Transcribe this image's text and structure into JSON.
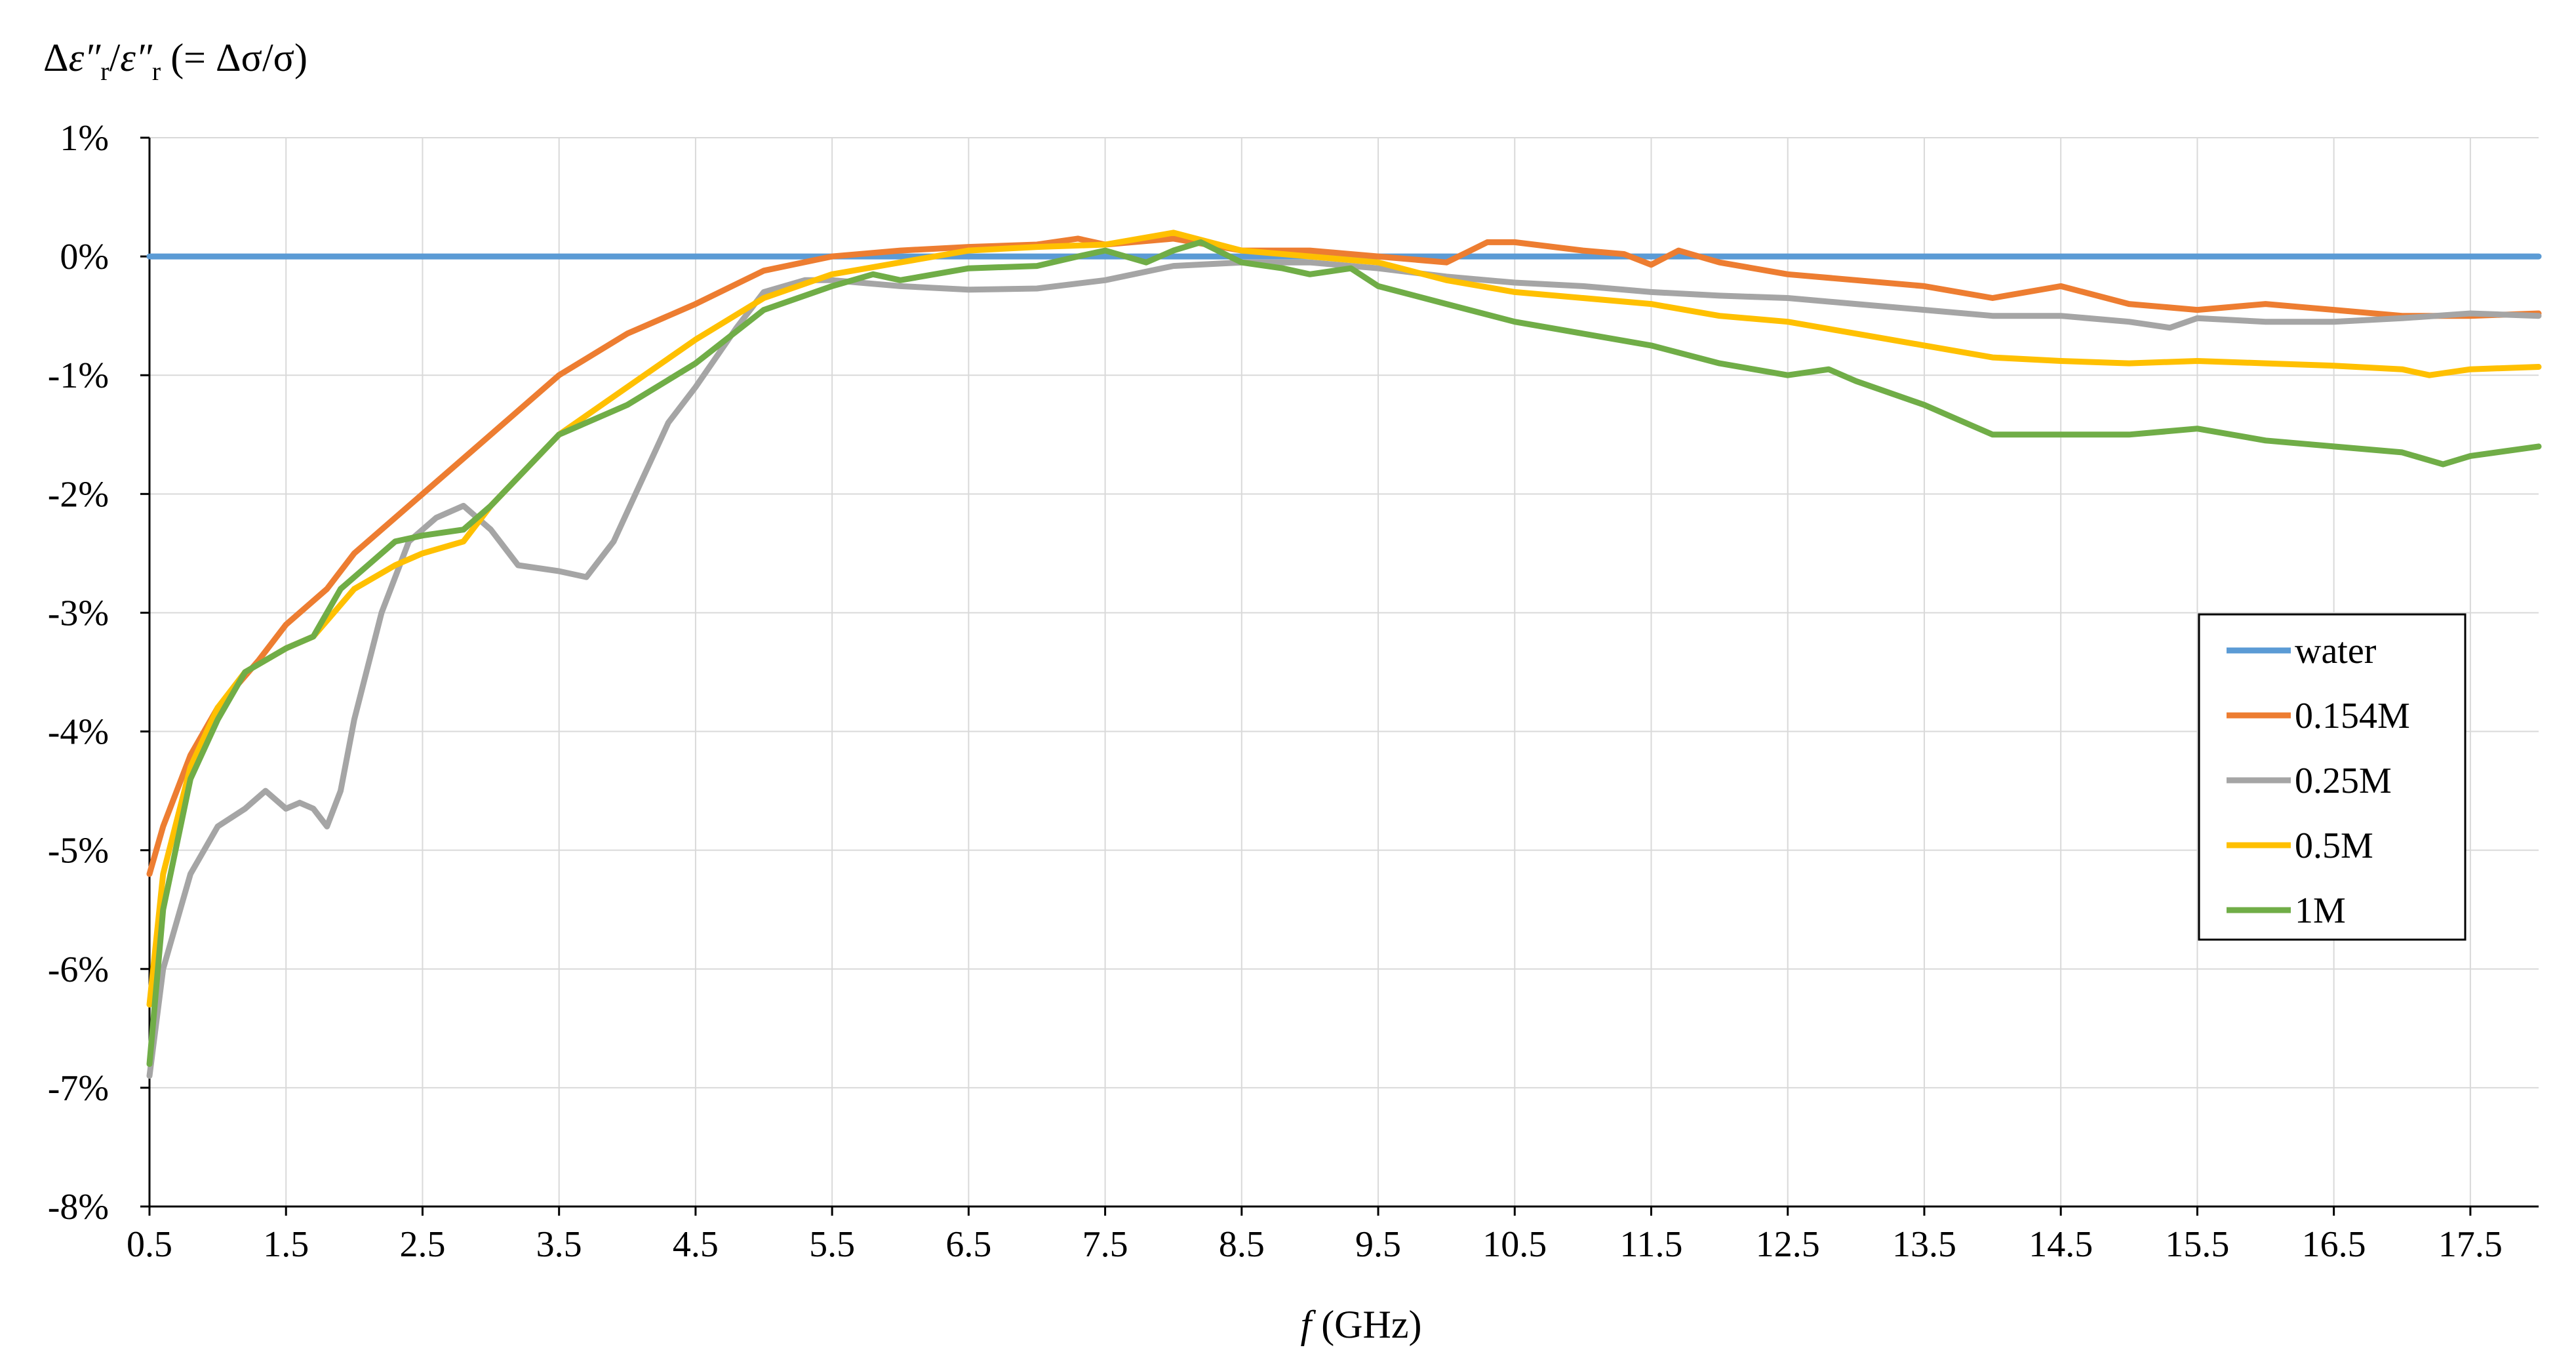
{
  "chart_data": {
    "type": "line",
    "ylabel_parts": {
      "delta": "Δ",
      "eps": "ε″",
      "sub": "r",
      "slash": "/",
      "eps2": "ε″",
      "sub2": "r",
      "rest": " (= Δσ/σ)"
    },
    "xlabel_parts": {
      "f": "f",
      "unit": " (GHz)"
    },
    "xlim": [
      0.5,
      18
    ],
    "ylim": [
      -8,
      1
    ],
    "x_ticks": [
      "0.5",
      "1.5",
      "2.5",
      "3.5",
      "4.5",
      "5.5",
      "6.5",
      "7.5",
      "8.5",
      "9.5",
      "10.5",
      "11.5",
      "12.5",
      "13.5",
      "14.5",
      "15.5",
      "16.5",
      "17.5"
    ],
    "x_tick_values": [
      0.5,
      1.5,
      2.5,
      3.5,
      4.5,
      5.5,
      6.5,
      7.5,
      8.5,
      9.5,
      10.5,
      11.5,
      12.5,
      13.5,
      14.5,
      15.5,
      16.5,
      17.5
    ],
    "y_ticks": [
      "1%",
      "0%",
      "-1%",
      "-2%",
      "-3%",
      "-4%",
      "-5%",
      "-6%",
      "-7%",
      "-8%"
    ],
    "y_tick_values": [
      1,
      0,
      -1,
      -2,
      -3,
      -4,
      -5,
      -6,
      -7,
      -8
    ],
    "grid": true,
    "legend_position": "right",
    "series": [
      {
        "name": "water",
        "color": "#5b9bd5",
        "x": [
          0.5,
          18
        ],
        "y": [
          0,
          0
        ]
      },
      {
        "name": "0.154M",
        "color": "#ed7d31",
        "x": [
          0.5,
          0.6,
          0.8,
          1.0,
          1.3,
          1.5,
          1.8,
          2.0,
          2.5,
          3.0,
          3.5,
          4.0,
          4.5,
          5.0,
          5.5,
          6.0,
          6.5,
          7.0,
          7.3,
          7.5,
          8.0,
          8.5,
          9.0,
          9.5,
          10.0,
          10.3,
          10.5,
          11.0,
          11.3,
          11.5,
          11.7,
          12.0,
          12.5,
          13.0,
          13.5,
          14.0,
          14.5,
          15.0,
          15.5,
          16.0,
          16.5,
          17.0,
          17.5,
          18.0
        ],
        "y": [
          -5.2,
          -4.8,
          -4.2,
          -3.8,
          -3.4,
          -3.1,
          -2.8,
          -2.5,
          -2.0,
          -1.5,
          -1.0,
          -0.65,
          -0.4,
          -0.12,
          0.0,
          0.05,
          0.08,
          0.1,
          0.15,
          0.1,
          0.15,
          0.05,
          0.05,
          0.0,
          -0.05,
          0.12,
          0.12,
          0.05,
          0.02,
          -0.07,
          0.05,
          -0.05,
          -0.15,
          -0.2,
          -0.25,
          -0.35,
          -0.25,
          -0.4,
          -0.45,
          -0.4,
          -0.45,
          -0.5,
          -0.5,
          -0.48
        ]
      },
      {
        "name": "0.25M",
        "color": "#a5a5a5",
        "x": [
          0.5,
          0.6,
          0.8,
          1.0,
          1.2,
          1.35,
          1.5,
          1.6,
          1.7,
          1.8,
          1.9,
          2.0,
          2.2,
          2.4,
          2.6,
          2.8,
          3.0,
          3.2,
          3.5,
          3.7,
          3.9,
          4.1,
          4.3,
          4.5,
          4.8,
          5.0,
          5.3,
          5.5,
          5.7,
          6.0,
          6.5,
          7.0,
          7.5,
          8.0,
          8.5,
          9.0,
          9.5,
          10.0,
          10.5,
          11.0,
          11.5,
          12.0,
          12.5,
          13.0,
          13.5,
          14.0,
          14.5,
          15.0,
          15.3,
          15.5,
          16.0,
          16.5,
          17.0,
          17.5,
          18.0
        ],
        "y": [
          -6.9,
          -6.0,
          -5.2,
          -4.8,
          -4.65,
          -4.5,
          -4.65,
          -4.6,
          -4.65,
          -4.8,
          -4.5,
          -3.9,
          -3.0,
          -2.4,
          -2.2,
          -2.1,
          -2.3,
          -2.6,
          -2.65,
          -2.7,
          -2.4,
          -1.9,
          -1.4,
          -1.1,
          -0.6,
          -0.3,
          -0.2,
          -0.2,
          -0.22,
          -0.25,
          -0.28,
          -0.27,
          -0.2,
          -0.08,
          -0.05,
          -0.05,
          -0.1,
          -0.17,
          -0.22,
          -0.25,
          -0.3,
          -0.33,
          -0.35,
          -0.4,
          -0.45,
          -0.5,
          -0.5,
          -0.55,
          -0.6,
          -0.52,
          -0.55,
          -0.55,
          -0.52,
          -0.48,
          -0.5
        ]
      },
      {
        "name": "0.5M",
        "color": "#ffc000",
        "x": [
          0.5,
          0.6,
          0.8,
          1.0,
          1.2,
          1.5,
          1.7,
          2.0,
          2.3,
          2.5,
          2.8,
          3.0,
          3.5,
          4.0,
          4.5,
          5.0,
          5.5,
          6.0,
          6.5,
          7.0,
          7.5,
          8.0,
          8.5,
          9.0,
          9.5,
          10.0,
          10.5,
          11.0,
          11.5,
          12.0,
          12.5,
          13.0,
          13.5,
          14.0,
          14.5,
          15.0,
          15.5,
          16.0,
          16.5,
          17.0,
          17.2,
          17.5,
          18.0
        ],
        "y": [
          -6.3,
          -5.2,
          -4.3,
          -3.8,
          -3.5,
          -3.3,
          -3.2,
          -2.8,
          -2.6,
          -2.5,
          -2.4,
          -2.1,
          -1.5,
          -1.1,
          -0.7,
          -0.35,
          -0.15,
          -0.05,
          0.05,
          0.08,
          0.1,
          0.2,
          0.05,
          0.0,
          -0.05,
          -0.2,
          -0.3,
          -0.35,
          -0.4,
          -0.5,
          -0.55,
          -0.65,
          -0.75,
          -0.85,
          -0.88,
          -0.9,
          -0.88,
          -0.9,
          -0.92,
          -0.95,
          -1.0,
          -0.95,
          -0.93
        ]
      },
      {
        "name": "1M",
        "color": "#70ad47",
        "x": [
          0.5,
          0.6,
          0.8,
          1.0,
          1.2,
          1.5,
          1.7,
          1.9,
          2.1,
          2.3,
          2.5,
          2.8,
          3.0,
          3.5,
          4.0,
          4.5,
          5.0,
          5.5,
          5.8,
          6.0,
          6.5,
          7.0,
          7.3,
          7.5,
          7.8,
          8.0,
          8.2,
          8.5,
          8.8,
          9.0,
          9.3,
          9.5,
          10.0,
          10.5,
          11.0,
          11.5,
          12.0,
          12.5,
          12.8,
          13.0,
          13.5,
          14.0,
          14.5,
          15.0,
          15.5,
          16.0,
          16.5,
          17.0,
          17.3,
          17.5,
          18.0
        ],
        "y": [
          -6.8,
          -5.5,
          -4.4,
          -3.9,
          -3.5,
          -3.3,
          -3.2,
          -2.8,
          -2.6,
          -2.4,
          -2.35,
          -2.3,
          -2.1,
          -1.5,
          -1.25,
          -0.9,
          -0.45,
          -0.25,
          -0.15,
          -0.2,
          -0.1,
          -0.08,
          0.0,
          0.05,
          -0.05,
          0.05,
          0.12,
          -0.05,
          -0.1,
          -0.15,
          -0.1,
          -0.25,
          -0.4,
          -0.55,
          -0.65,
          -0.75,
          -0.9,
          -1.0,
          -0.95,
          -1.05,
          -1.25,
          -1.5,
          -1.5,
          -1.5,
          -1.45,
          -1.55,
          -1.6,
          -1.65,
          -1.75,
          -1.68,
          -1.6
        ]
      }
    ]
  }
}
